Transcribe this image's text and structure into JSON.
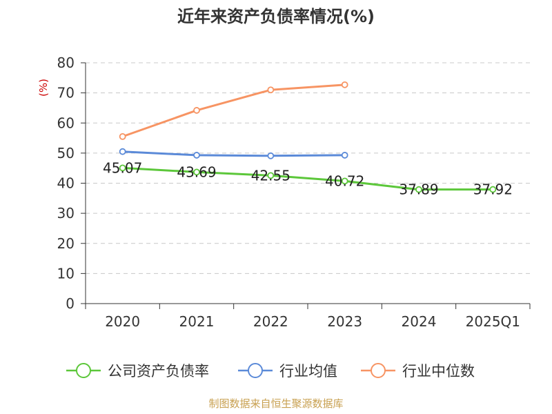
{
  "chart_data": {
    "type": "line",
    "title": "近年来资产负债率情况(%)",
    "ylabel": "(%)",
    "categories": [
      "2020",
      "2021",
      "2022",
      "2023",
      "2024",
      "2025Q1"
    ],
    "ylim": [
      0,
      80
    ],
    "yticks": [
      0,
      10,
      20,
      30,
      40,
      50,
      60,
      70,
      80
    ],
    "grid": true,
    "legend_position": "bottom",
    "series": [
      {
        "name": "公司资产负债率",
        "color": "#5cc73a",
        "values": [
          45.07,
          43.69,
          42.55,
          40.72,
          37.89,
          37.92
        ],
        "labels": [
          "45.07",
          "43.69",
          "42.55",
          "40.72",
          "37.89",
          "37.92"
        ]
      },
      {
        "name": "行业均值",
        "color": "#5b8ad8",
        "values": [
          50.5,
          49.3,
          49.1,
          49.3,
          null,
          null
        ]
      },
      {
        "name": "行业中位数",
        "color": "#f79463",
        "values": [
          55.5,
          64.2,
          71.0,
          72.7,
          null,
          null
        ]
      }
    ],
    "source": "制图数据来自恒生聚源数据库"
  }
}
